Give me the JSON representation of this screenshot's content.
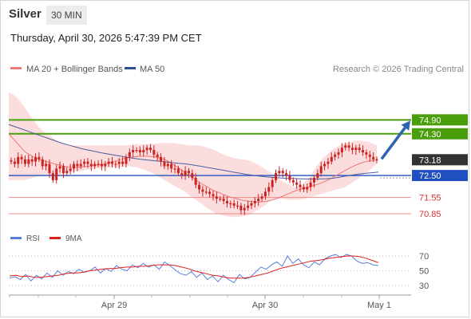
{
  "header": {
    "instrument": "Silver",
    "timeframe": "30 MIN",
    "datetime": "Thursday, April 30, 2026 5:47:39 PM CET"
  },
  "legend": {
    "ma20_bb": "MA 20 + Bollinger Bands",
    "ma50": "MA 50",
    "credit": "Research © 2026 Trading Central",
    "rsi": "RSI",
    "rsi_9ma": "9MA"
  },
  "colors": {
    "candle": "#cc2222",
    "ma20": "#ee7777",
    "bollinger_fill": "#fbd9d9",
    "ma50": "#4a5fa0",
    "resistance": "#4a9e0c",
    "support": "#2050c0",
    "level_line": "#ee8888",
    "rsi_line": "#5b7fd8",
    "rsi_ma": "#dd1f1f",
    "arrow": "#2e64b4",
    "current_price_bg": "#333333"
  },
  "chart_data": [
    {
      "type": "candlestick",
      "y_range": [
        70.3,
        76.7
      ],
      "x_ticks": [
        "Apr 29",
        "Apr 30",
        "May 1"
      ],
      "current_price": "73.18",
      "levels": [
        {
          "label": "74.90",
          "value": 74.9,
          "kind": "resistance"
        },
        {
          "label": "74.30",
          "value": 74.3,
          "kind": "resistance"
        },
        {
          "label": "72.50",
          "value": 72.5,
          "kind": "pivot"
        },
        {
          "label": "71.55",
          "value": 71.55,
          "kind": "support"
        },
        {
          "label": "70.85",
          "value": 70.85,
          "kind": "support"
        }
      ],
      "forecast_arrow": {
        "from": 73.18,
        "to": 74.9
      },
      "close": [
        73.1,
        73.0,
        73.3,
        73.2,
        73.0,
        73.2,
        73.1,
        73.3,
        73.2,
        72.9,
        73.0,
        72.6,
        72.3,
        72.8,
        72.9,
        72.6,
        72.7,
        72.8,
        73.0,
        72.9,
        73.0,
        73.1,
        73.0,
        72.9,
        73.0,
        73.0,
        72.9,
        73.0,
        73.1,
        73.0,
        73.0,
        73.1,
        73.0,
        73.3,
        73.5,
        73.6,
        73.6,
        73.5,
        73.6,
        73.7,
        73.6,
        73.4,
        73.3,
        73.1,
        72.9,
        73.0,
        72.8,
        72.8,
        72.6,
        72.5,
        72.7,
        72.6,
        72.4,
        72.1,
        71.9,
        71.8,
        71.8,
        71.7,
        71.6,
        71.5,
        71.5,
        71.4,
        71.3,
        71.3,
        71.2,
        71.2,
        71.0,
        71.1,
        71.2,
        71.3,
        71.4,
        71.5,
        71.6,
        71.8,
        72.0,
        72.3,
        72.6,
        72.7,
        72.6,
        72.5,
        72.3,
        72.2,
        72.1,
        72.0,
        71.9,
        72.0,
        72.2,
        72.4,
        72.6,
        72.9,
        73.0,
        73.1,
        73.3,
        73.4,
        73.5,
        73.7,
        73.8,
        73.7,
        73.6,
        73.7,
        73.6,
        73.5,
        73.4,
        73.3,
        73.2,
        73.18
      ],
      "ma20": [
        74.3,
        74.1,
        73.9,
        73.7,
        73.5,
        73.4,
        73.3,
        73.2,
        73.15,
        73.1,
        73.05,
        73.0,
        72.95,
        72.9,
        72.88,
        72.85,
        72.85,
        72.86,
        72.88,
        72.9,
        72.92,
        72.95,
        72.97,
        73.0,
        73.05,
        73.1,
        73.15,
        73.2,
        73.25,
        73.28,
        73.3,
        73.32,
        73.33,
        73.33,
        73.32,
        73.3,
        73.26,
        73.2,
        73.12,
        73.0,
        72.9,
        72.78,
        72.65,
        72.52,
        72.4,
        72.28,
        72.15,
        72.05,
        71.95,
        71.85,
        71.78,
        71.7,
        71.63,
        71.57,
        71.52,
        71.47,
        71.43,
        71.4,
        71.38,
        71.36,
        71.36,
        71.37,
        71.4,
        71.45,
        71.5,
        71.57,
        71.65,
        71.72,
        71.8,
        71.87,
        71.92,
        71.97,
        72.02,
        72.07,
        72.13,
        72.2,
        72.28,
        72.37,
        72.47,
        72.57,
        72.67,
        72.77,
        72.87,
        72.95,
        73.02,
        73.08,
        73.12,
        73.15,
        73.17
      ],
      "ma50": [
        74.7,
        74.6,
        74.5,
        74.4,
        74.3,
        74.2,
        74.1,
        74.0,
        73.9,
        73.82,
        73.74,
        73.66,
        73.6,
        73.54,
        73.48,
        73.43,
        73.38,
        73.33,
        73.28,
        73.24,
        73.2,
        73.17,
        73.14,
        73.11,
        73.08,
        73.05,
        73.02,
        72.99,
        72.95,
        72.9,
        72.85,
        72.8,
        72.75,
        72.7,
        72.65,
        72.6,
        72.55,
        72.51,
        72.47,
        72.44,
        72.42,
        72.4,
        72.38,
        72.37,
        72.36,
        72.35,
        72.35,
        72.35,
        72.36,
        72.38,
        72.42,
        72.47,
        72.52,
        72.56,
        72.59,
        72.62,
        72.65
      ],
      "bollinger_upper": [
        76.1,
        75.9,
        75.5,
        75.0,
        74.6,
        74.3,
        74.1,
        73.9,
        73.8,
        73.8,
        73.8,
        73.8,
        73.8,
        73.8,
        73.8,
        73.8,
        73.8,
        73.85,
        73.85,
        73.85,
        73.9,
        73.9,
        73.9,
        73.85,
        73.8,
        73.8,
        73.75,
        73.65,
        73.5,
        73.35,
        73.25,
        73.2,
        73.15,
        73.0,
        72.8,
        72.6,
        72.35,
        72.15,
        72.0,
        72.1,
        72.4,
        72.9,
        73.3,
        73.6,
        73.8,
        73.9,
        74.0,
        74.0,
        73.95,
        73.8
      ],
      "bollinger_lower": [
        72.3,
        72.3,
        72.3,
        72.4,
        72.5,
        72.5,
        72.5,
        72.6,
        72.65,
        72.7,
        72.75,
        72.8,
        72.82,
        72.85,
        72.87,
        72.9,
        72.85,
        72.75,
        72.6,
        72.4,
        72.2,
        72.0,
        71.8,
        71.55,
        71.3,
        71.05,
        70.85,
        70.75,
        70.7,
        70.72,
        70.8,
        71.0,
        71.2,
        71.5,
        71.5,
        71.45,
        71.45,
        71.5,
        71.6,
        71.7,
        71.8,
        71.9,
        72.0,
        72.2,
        72.45,
        72.7,
        73.0
      ],
      "rsi": {
        "y_ticks": [
          70,
          50,
          30
        ],
        "rsi": [
          40,
          42,
          38,
          45,
          36,
          44,
          39,
          47,
          41,
          50,
          44,
          49,
          46,
          52,
          48,
          50,
          55,
          47,
          53,
          49,
          57,
          52,
          50,
          58,
          54,
          60,
          55,
          58,
          52,
          62,
          57,
          51,
          46,
          44,
          49,
          41,
          47,
          38,
          43,
          35,
          44,
          38,
          34,
          45,
          39,
          41,
          48,
          55,
          52,
          58,
          62,
          56,
          70,
          60,
          66,
          58,
          54,
          62,
          58,
          66,
          70,
          72,
          68,
          72,
          70,
          63,
          60,
          61,
          58,
          57
        ],
        "ma9": [
          43,
          44,
          42,
          43,
          41,
          41,
          42,
          43,
          44,
          46,
          47,
          47,
          48,
          50,
          51,
          52,
          53,
          53,
          54,
          55,
          55,
          56,
          56,
          57,
          58,
          58,
          58,
          57,
          55,
          53,
          50,
          48,
          46,
          44,
          43,
          41,
          40,
          40,
          40,
          41,
          43,
          45,
          47,
          50,
          53,
          55,
          57,
          59,
          61,
          63,
          64,
          65,
          67,
          68,
          69,
          70,
          70,
          69,
          67,
          64,
          61
        ]
      }
    }
  ]
}
